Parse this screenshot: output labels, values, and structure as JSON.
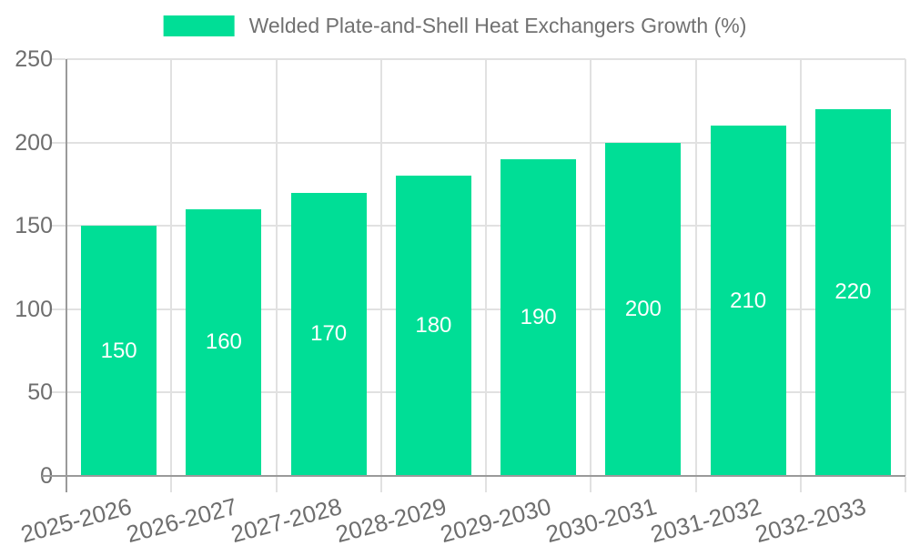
{
  "legend": {
    "series_label": "Welded Plate-and-Shell Heat Exchangers Growth (%)"
  },
  "chart_data": {
    "type": "bar",
    "title": "Welded Plate-and-Shell Heat Exchangers Growth (%)",
    "categories": [
      "2025-2026",
      "2026-2027",
      "2027-2028",
      "2028-2029",
      "2029-2030",
      "2030-2031",
      "2031-2032",
      "2032-2033"
    ],
    "series": [
      {
        "name": "Welded Plate-and-Shell Heat Exchangers Growth (%)",
        "values": [
          150,
          160,
          170,
          180,
          190,
          200,
          210,
          220
        ]
      }
    ],
    "value_labels_shown": true,
    "xlabel": "",
    "ylabel": "",
    "ylim": [
      0,
      250
    ],
    "yticks": [
      0,
      50,
      100,
      150,
      200,
      250
    ],
    "grid": true,
    "legend_position": "top-center",
    "colors": {
      "bar": "#00DE96",
      "value_label": "#FFFFFF",
      "axis_line": "#9A9A9A",
      "gridline": "#E1E1E1",
      "tick_label": "#6E6E6E",
      "legend_text": "#717171",
      "background": "#FFFFFF"
    }
  }
}
